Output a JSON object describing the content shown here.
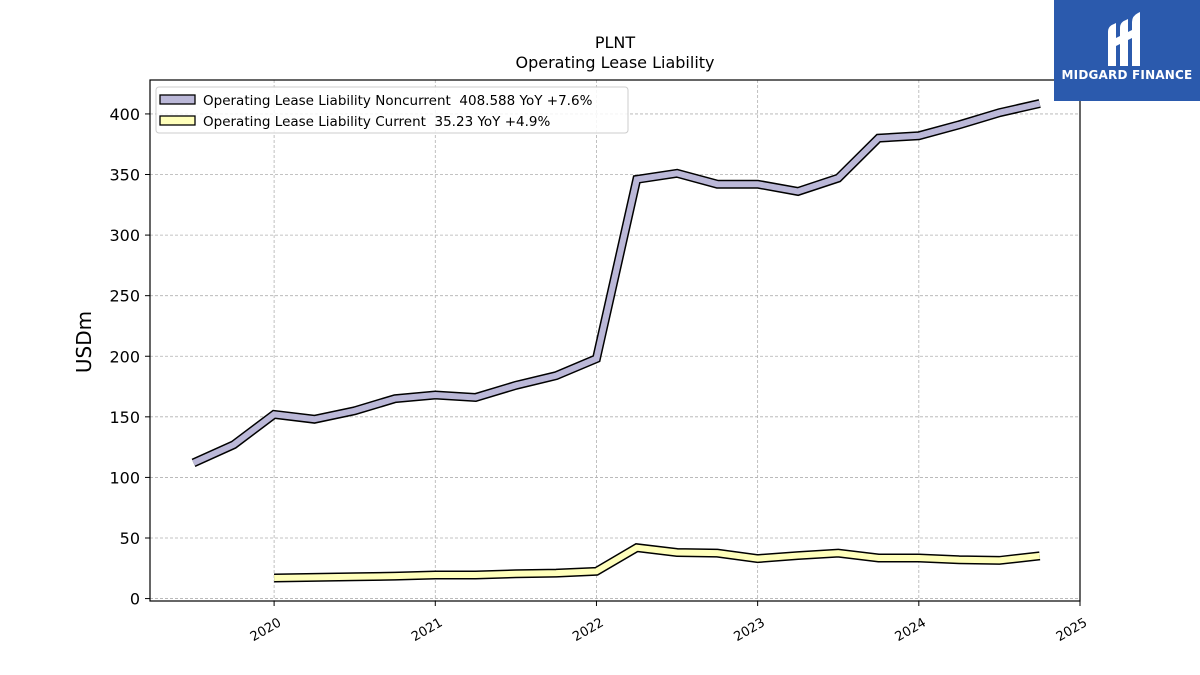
{
  "chart_data": {
    "type": "line",
    "title": "PLNT",
    "subtitle": "Operating Lease Liability",
    "ylabel": "USDm",
    "xlabel": "",
    "xlim": [
      2019.23,
      2025.0
    ],
    "ylim": [
      -2,
      428
    ],
    "y_ticks": [
      0,
      50,
      100,
      150,
      200,
      250,
      300,
      350,
      400
    ],
    "x_ticks": [
      {
        "value": 2020,
        "label": "2020"
      },
      {
        "value": 2021,
        "label": "2021"
      },
      {
        "value": 2022,
        "label": "2022"
      },
      {
        "value": 2023,
        "label": "2023"
      },
      {
        "value": 2024,
        "label": "2024"
      },
      {
        "value": 2025,
        "label": "2025"
      }
    ],
    "grid": true,
    "legend_position": "top-left",
    "series": [
      {
        "name": "Operating Lease Liability Noncurrent  408.588 YoY +7.6%",
        "color": "#bbb8d8",
        "x": [
          2019.5,
          2019.75,
          2020.0,
          2020.25,
          2020.5,
          2020.75,
          2021.0,
          2021.25,
          2021.5,
          2021.75,
          2022.0,
          2022.25,
          2022.5,
          2022.75,
          2023.0,
          2023.25,
          2023.5,
          2023.75,
          2024.0,
          2024.25,
          2024.5,
          2024.75
        ],
        "y": [
          112,
          127,
          152,
          148,
          155,
          165,
          168,
          166,
          176,
          184,
          198,
          346,
          351,
          342,
          342,
          336,
          347,
          380,
          382,
          391,
          401,
          408.588
        ]
      },
      {
        "name": "Operating Lease Liability Current  35.23 YoY +4.9%",
        "color": "#ffffbb",
        "x": [
          2020.0,
          2020.25,
          2020.5,
          2020.75,
          2021.0,
          2021.25,
          2021.5,
          2021.75,
          2022.0,
          2022.25,
          2022.5,
          2022.75,
          2023.0,
          2023.25,
          2023.5,
          2023.75,
          2024.0,
          2024.25,
          2024.5,
          2024.75
        ],
        "y": [
          17,
          17.5,
          18,
          18.5,
          19.5,
          19.5,
          20.5,
          21,
          22.5,
          42,
          38,
          37.5,
          33,
          35.5,
          37.5,
          33.5,
          33.5,
          32,
          31.5,
          35.23
        ]
      }
    ]
  },
  "brand": {
    "name": "MIDGARD FINANCE",
    "icon": "midgard-logo-icon",
    "background": "#2b5aad"
  }
}
